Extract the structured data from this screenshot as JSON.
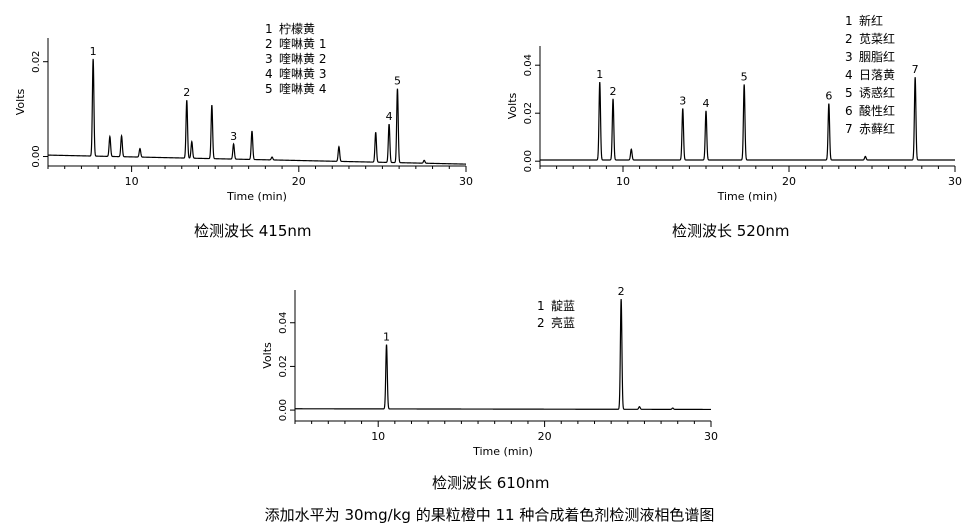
{
  "caption": "添加水平为 30mg/kg 的果粒橙中 11 种合成着色剂检测液相色谱图",
  "chart_data": [
    {
      "type": "line",
      "title": "检测波长 415nm",
      "xlabel": "Time (min)",
      "ylabel": "Volts",
      "xlim": [
        5,
        30
      ],
      "ylim": [
        -0.002,
        0.025
      ],
      "xticks": [
        10,
        20,
        30
      ],
      "yticks": [
        0.0,
        0.02
      ],
      "ytick_labels": [
        "0.00",
        "0.02"
      ],
      "grid": false,
      "legend": [
        {
          "id": "1",
          "label": "柠檬黄"
        },
        {
          "id": "2",
          "label": "喹啉黄 1"
        },
        {
          "id": "3",
          "label": "喹啉黄 2"
        },
        {
          "id": "4",
          "label": "喹啉黄 3"
        },
        {
          "id": "5",
          "label": "喹啉黄 4"
        }
      ],
      "baseline": {
        "start": 0.0003,
        "end": -0.0016
      },
      "peaks": [
        {
          "t": 7.7,
          "h": 0.0205,
          "label": "1"
        },
        {
          "t": 8.7,
          "h": 0.0042
        },
        {
          "t": 9.4,
          "h": 0.0044
        },
        {
          "t": 10.5,
          "h": 0.0018
        },
        {
          "t": 13.3,
          "h": 0.0122,
          "label": "2"
        },
        {
          "t": 13.6,
          "h": 0.0035
        },
        {
          "t": 14.8,
          "h": 0.0113
        },
        {
          "t": 16.1,
          "h": 0.0032,
          "label": "3"
        },
        {
          "t": 17.2,
          "h": 0.006
        },
        {
          "t": 18.4,
          "h": 0.0006
        },
        {
          "t": 22.4,
          "h": 0.0031
        },
        {
          "t": 24.6,
          "h": 0.0063
        },
        {
          "t": 25.4,
          "h": 0.0081,
          "label": "4"
        },
        {
          "t": 25.9,
          "h": 0.0156,
          "label": "5"
        },
        {
          "t": 27.5,
          "h": 0.0006
        }
      ]
    },
    {
      "type": "line",
      "title": "检测波长 520nm",
      "xlabel": "Time (min)",
      "ylabel": "Volts",
      "xlim": [
        5,
        30
      ],
      "ylim": [
        -0.002,
        0.048
      ],
      "xticks": [
        10,
        20,
        30
      ],
      "yticks": [
        0.0,
        0.02,
        0.04
      ],
      "ytick_labels": [
        "0.00",
        "0.02",
        "0.04"
      ],
      "grid": false,
      "legend": [
        {
          "id": "1",
          "label": "新红"
        },
        {
          "id": "2",
          "label": "苋菜红"
        },
        {
          "id": "3",
          "label": "胭脂红"
        },
        {
          "id": "4",
          "label": "日落黄"
        },
        {
          "id": "5",
          "label": "诱惑红"
        },
        {
          "id": "6",
          "label": "酸性红"
        },
        {
          "id": "7",
          "label": "赤藓红"
        }
      ],
      "baseline": {
        "start": 0.0005,
        "end": 0.0005
      },
      "peaks": [
        {
          "t": 8.6,
          "h": 0.0325,
          "label": "1"
        },
        {
          "t": 9.4,
          "h": 0.0255,
          "label": "2"
        },
        {
          "t": 10.5,
          "h": 0.0045
        },
        {
          "t": 13.6,
          "h": 0.0215,
          "label": "3"
        },
        {
          "t": 15.0,
          "h": 0.0205,
          "label": "4"
        },
        {
          "t": 17.3,
          "h": 0.0315,
          "label": "5"
        },
        {
          "t": 22.4,
          "h": 0.0235,
          "label": "6"
        },
        {
          "t": 24.6,
          "h": 0.0015
        },
        {
          "t": 27.6,
          "h": 0.0345,
          "label": "7"
        }
      ]
    },
    {
      "type": "line",
      "title": "检测波长 610nm",
      "xlabel": "Time (min)",
      "ylabel": "Volts",
      "xlim": [
        5,
        30
      ],
      "ylim": [
        -0.005,
        0.055
      ],
      "xticks": [
        10,
        20,
        30
      ],
      "yticks": [
        0.0,
        0.02,
        0.04
      ],
      "ytick_labels": [
        "0.00",
        "0.02",
        "0.04"
      ],
      "grid": false,
      "legend": [
        {
          "id": "1",
          "label": "靛蓝"
        },
        {
          "id": "2",
          "label": "亮蓝"
        }
      ],
      "baseline": {
        "start": 0.0006,
        "end": 0.0003
      },
      "peaks": [
        {
          "t": 10.5,
          "h": 0.0295,
          "label": "1"
        },
        {
          "t": 24.6,
          "h": 0.0505,
          "label": "2"
        },
        {
          "t": 25.7,
          "h": 0.0012
        },
        {
          "t": 27.7,
          "h": 0.0006
        }
      ]
    }
  ]
}
